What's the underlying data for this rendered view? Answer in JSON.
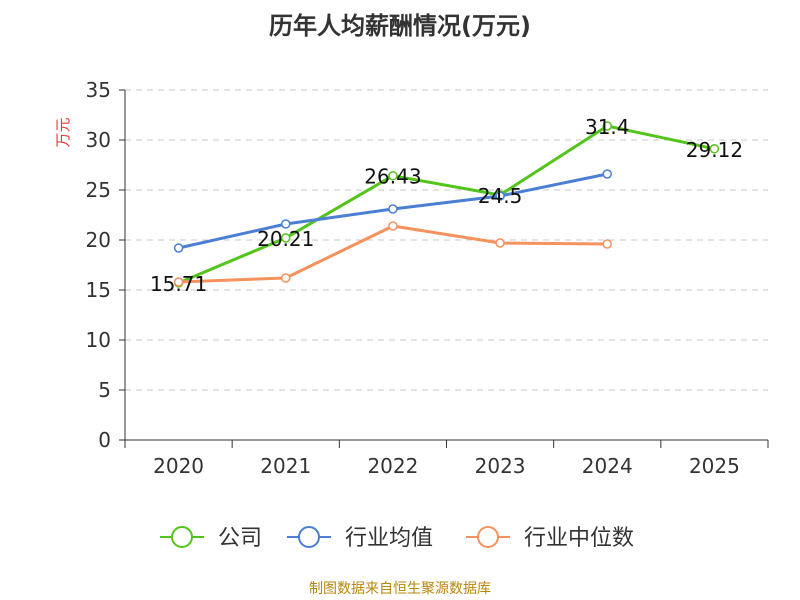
{
  "chart_data": {
    "type": "line",
    "title": "历年人均薪酬情况(万元)",
    "ylabel": "万元",
    "xlabel": "",
    "ylim": [
      0,
      35
    ],
    "yticks": [
      0,
      5,
      10,
      15,
      20,
      25,
      30,
      35
    ],
    "categories": [
      "2020",
      "2021",
      "2022",
      "2023",
      "2024",
      "2025"
    ],
    "grid": true,
    "legend_position": "bottom",
    "series": [
      {
        "name": "公司",
        "color": "#52c41a",
        "values": [
          15.71,
          20.21,
          26.43,
          24.5,
          31.4,
          29.12
        ],
        "labels": [
          "15.71",
          "20.21",
          "26.43",
          "24.5",
          "31.4",
          "29.12"
        ]
      },
      {
        "name": "行业均值",
        "color": "#4a7fd4",
        "values": [
          19.2,
          21.6,
          23.1,
          24.4,
          26.6,
          null
        ]
      },
      {
        "name": "行业中位数",
        "color": "#f5925e",
        "values": [
          15.8,
          16.2,
          21.4,
          19.7,
          19.6,
          null
        ]
      }
    ]
  },
  "source": "制图数据来自恒生聚源数据库"
}
